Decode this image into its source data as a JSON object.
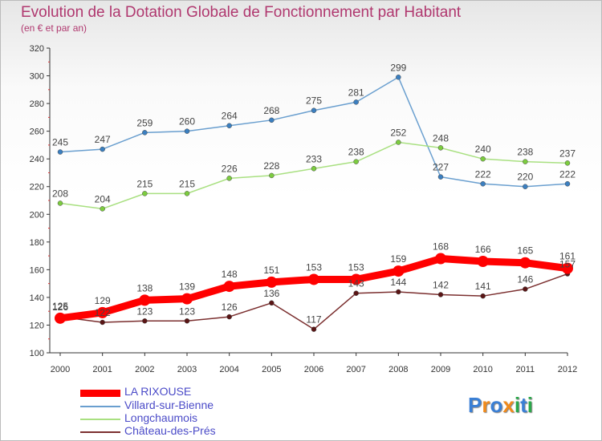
{
  "header": {
    "title": "Evolution de la Dotation Globale de Fonctionnement par Habitant",
    "subtitle": "(en € et par an)"
  },
  "chart_data": {
    "type": "line",
    "title": "Evolution de la Dotation Globale de Fonctionnement par Habitant",
    "subtitle": "(en € et par an)",
    "xlabel": "",
    "ylabel": "",
    "x": [
      "2000",
      "2001",
      "2002",
      "2003",
      "2004",
      "2005",
      "2006",
      "2007",
      "2008",
      "2009",
      "2010",
      "2011",
      "2012"
    ],
    "ylim": [
      100,
      320
    ],
    "yticks": [
      100,
      120,
      140,
      160,
      180,
      200,
      220,
      240,
      260,
      280,
      300,
      320
    ],
    "grid": false,
    "legend": "bottom-left",
    "series": [
      {
        "name": "Villard-sur-Bienne",
        "color": "#6a9fcf",
        "marker": "#3b7fc0",
        "values": [
          245,
          247,
          259,
          260,
          264,
          268,
          275,
          281,
          299,
          227,
          222,
          220,
          222
        ]
      },
      {
        "name": "Longchaumois",
        "color": "#a9e081",
        "marker": "#7ccc3f",
        "values": [
          208,
          204,
          215,
          215,
          226,
          228,
          233,
          238,
          252,
          248,
          240,
          238,
          237
        ]
      },
      {
        "name": "Château-des-Prés",
        "color": "#7b2f2f",
        "marker": "#5a1515",
        "values": [
          126,
          122,
          123,
          123,
          126,
          136,
          117,
          143,
          144,
          142,
          141,
          146,
          157
        ]
      },
      {
        "name": "LA RIXOUSE",
        "color": "#ff0000",
        "marker": "#ff0000",
        "values": [
          125,
          129,
          138,
          139,
          148,
          151,
          153,
          153,
          159,
          168,
          166,
          165,
          161
        ]
      }
    ],
    "legend_order": [
      "LA RIXOUSE",
      "Villard-sur-Bienne",
      "Longchaumois",
      "Château-des-Prés"
    ]
  },
  "logo": {
    "text": "Proxiti",
    "letters": [
      "P",
      "r",
      "o",
      "x",
      "i",
      "t",
      "i"
    ],
    "colors": [
      "#3a7fd5",
      "#f08a1c",
      "#3a7fd5",
      "#f08a1c",
      "#2aa84a",
      "#3a7fd5",
      "#2aa84a"
    ]
  }
}
